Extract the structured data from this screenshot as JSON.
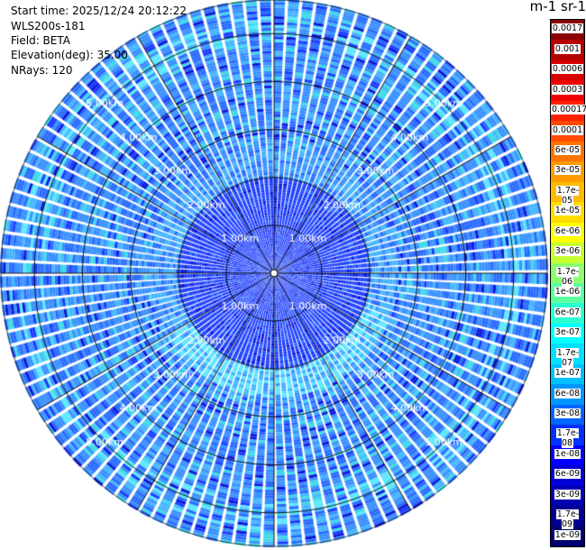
{
  "info": {
    "start_time": "Start time: 2025/12/24 20:12:22",
    "station": "WLS200s-181",
    "field": "Field: BETA",
    "elevation": "Elevation(deg): 35.00",
    "nrays": "NRays: 120"
  },
  "colorbar": {
    "title": "m-1 sr-1",
    "labels": [
      "0.0017",
      "0.001",
      "0.0006",
      "0.0003",
      "0.00017",
      "0.0001",
      "6e-05",
      "3e-05",
      "1.7e-05",
      "1e-05",
      "6e-06",
      "3e-06",
      "1.7e-06",
      "1e-06",
      "6e-07",
      "3e-07",
      "1.7e-07",
      "1e-07",
      "6e-08",
      "3e-08",
      "1.7e-08",
      "1e-08",
      "6e-09",
      "3e-09",
      "1.7e-09",
      "1e-09"
    ],
    "colors": [
      "#8b0000",
      "#b50000",
      "#d80000",
      "#f00000",
      "#ff2000",
      "#ff4a00",
      "#ff7400",
      "#ff9a00",
      "#ffbb00",
      "#ffdd00",
      "#ffff00",
      "#c8ff33",
      "#8cff6e",
      "#5cffa0",
      "#2cffd0",
      "#00ffff",
      "#00e0ff",
      "#00c0ff",
      "#0096ff",
      "#0066ff",
      "#0033ff",
      "#0000ff",
      "#0000d8",
      "#0000b0",
      "#000090",
      "#000070"
    ]
  },
  "chart_data": {
    "type": "heatmap",
    "projection": "polar-ppi",
    "field": "BETA",
    "n_rays": 120,
    "range_rings_km": [
      1,
      2,
      3,
      4,
      5
    ],
    "range_ring_labels": [
      "1.00km",
      "2.00km",
      "3.00km",
      "4.00km",
      "5.00km"
    ],
    "max_range_km": 5.7,
    "color_scale": "log",
    "dominant_values": {
      "inner_0_2km": "1e-08",
      "ring_2_2.5km": "1.7e-07",
      "outer_2.5_5.7km": "6e-08"
    }
  }
}
